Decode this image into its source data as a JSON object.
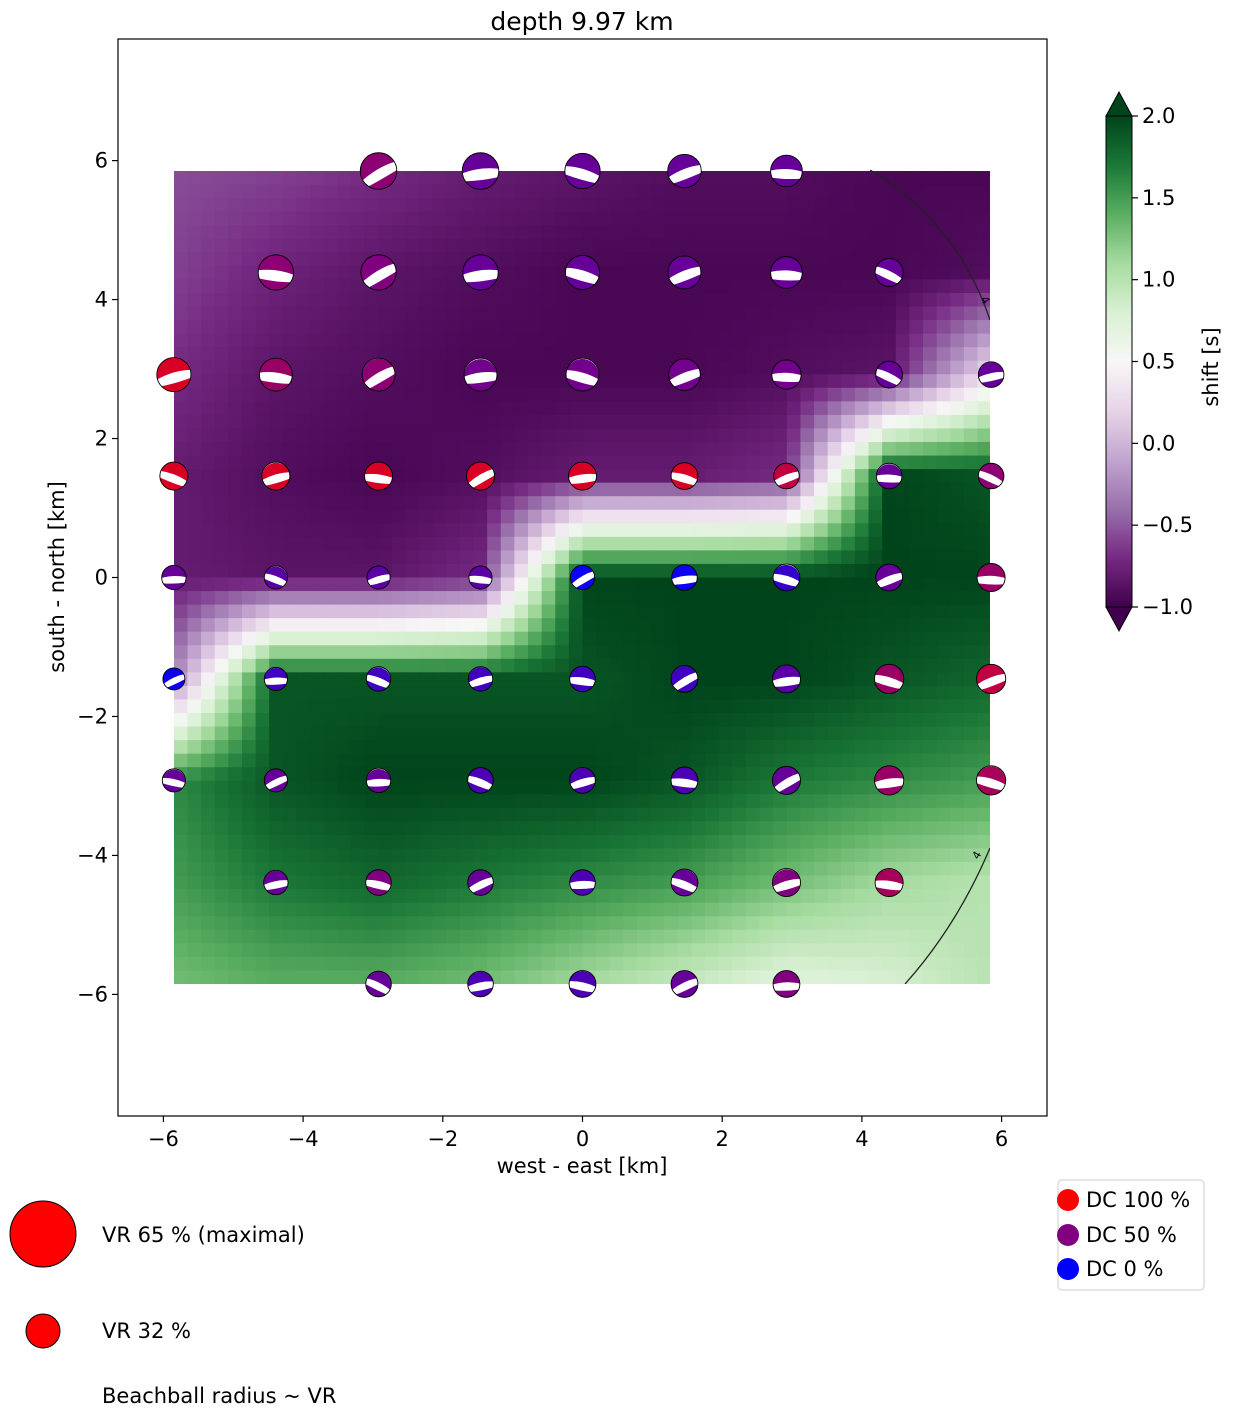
{
  "chart_data": {
    "type": "heatmap",
    "title": "depth  9.97 km",
    "xlabel": "west - east [km]",
    "ylabel": "south - north [km]",
    "xlim": [
      -6.65,
      6.65
    ],
    "ylim": [
      -7.75,
      7.75
    ],
    "xticks": [
      -6,
      -4,
      -2,
      0,
      2,
      4,
      6
    ],
    "yticks": [
      -6,
      -4,
      -2,
      0,
      2,
      4,
      6
    ],
    "x_tick_labels": [
      "−6",
      "−4",
      "−2",
      "0",
      "2",
      "4",
      "6"
    ],
    "y_tick_labels": [
      "−6",
      "−4",
      "−2",
      "0",
      "2",
      "4",
      "6"
    ],
    "grid": false,
    "heatmap_extent": {
      "x": [
        -5.85,
        5.85
      ],
      "y": [
        -5.85,
        5.85
      ]
    },
    "colorbar": {
      "label": "shift [s]",
      "range": [
        -1.0,
        2.0
      ],
      "ticks": [
        -1.0,
        -0.5,
        0.0,
        0.5,
        1.0,
        1.5,
        2.0
      ],
      "tick_labels": [
        "−1.0",
        "−0.5",
        "0.0",
        "0.5",
        "1.0",
        "1.5",
        "2.0"
      ],
      "colors": [
        "#40004b",
        "#762a83",
        "#9970ab",
        "#c2a5cf",
        "#e7d4e8",
        "#f7f7f7",
        "#d9f0d3",
        "#a6dba0",
        "#5aae61",
        "#1b7837",
        "#00441b"
      ]
    },
    "contour_labels": [
      "4",
      "4"
    ],
    "shift_surface": {
      "x": [
        -5.85,
        -4.39,
        -2.92,
        -1.46,
        0.0,
        1.46,
        2.92,
        4.39,
        5.85
      ],
      "y": [
        5.85,
        4.39,
        2.92,
        1.46,
        0.0,
        -1.46,
        -2.92,
        -4.39,
        -5.85
      ],
      "values": [
        [
          -0.55,
          -0.6,
          -0.7,
          -0.8,
          -0.85,
          -0.9,
          -0.9,
          -0.95,
          -0.95
        ],
        [
          -0.6,
          -0.75,
          -0.85,
          -0.9,
          -0.95,
          -0.95,
          -0.95,
          -0.95,
          -0.9
        ],
        [
          -0.7,
          -0.85,
          -0.9,
          -0.95,
          -0.95,
          -0.95,
          -0.9,
          -0.85,
          0.3
        ],
        [
          -0.8,
          -0.9,
          -0.95,
          -0.9,
          -0.8,
          -0.8,
          -0.7,
          2.0,
          1.9
        ],
        [
          -0.8,
          -0.85,
          -0.85,
          -0.7,
          2.0,
          2.0,
          2.0,
          2.0,
          2.0
        ],
        [
          -0.3,
          1.9,
          1.9,
          1.9,
          1.9,
          2.0,
          2.0,
          1.9,
          1.8
        ],
        [
          1.6,
          1.9,
          2.0,
          2.0,
          2.0,
          1.9,
          1.7,
          1.6,
          1.5
        ],
        [
          1.5,
          1.7,
          1.8,
          1.7,
          1.6,
          1.5,
          1.3,
          1.1,
          1.0
        ],
        [
          1.3,
          1.4,
          1.4,
          1.3,
          1.1,
          0.9,
          0.7,
          0.8,
          1.0
        ]
      ]
    },
    "beachballs": {
      "rows": [
        {
          "y": 5.85,
          "x": [
            -2.92,
            -1.46,
            0.0,
            1.46,
            2.92
          ],
          "vr": [
            60,
            60,
            58,
            55,
            52
          ],
          "dc": [
            55,
            40,
            40,
            40,
            40
          ]
        },
        {
          "y": 4.39,
          "x": [
            -4.39,
            -2.92,
            -1.46,
            0.0,
            1.46,
            2.92,
            4.39
          ],
          "vr": [
            58,
            58,
            58,
            56,
            54,
            52,
            46
          ],
          "dc": [
            55,
            50,
            40,
            40,
            40,
            40,
            40
          ]
        },
        {
          "y": 2.92,
          "x": [
            -5.85,
            -4.39,
            -2.92,
            -1.46,
            0.0,
            1.46,
            2.92,
            4.39,
            5.85
          ],
          "vr": [
            56,
            54,
            54,
            54,
            54,
            52,
            48,
            44,
            42
          ],
          "dc": [
            85,
            60,
            55,
            45,
            45,
            45,
            45,
            40,
            40
          ]
        },
        {
          "y": 1.46,
          "x": [
            -5.85,
            -4.39,
            -2.92,
            -1.46,
            0.0,
            1.46,
            2.92,
            4.39,
            5.85
          ],
          "vr": [
            46,
            46,
            46,
            46,
            46,
            44,
            42,
            42,
            42
          ],
          "dc": [
            85,
            85,
            85,
            85,
            85,
            85,
            75,
            40,
            55
          ]
        },
        {
          "y": 0.0,
          "x": [
            -5.85,
            -4.39,
            -2.92,
            -1.46,
            0.0,
            1.46,
            2.92,
            4.39,
            5.85
          ],
          "vr": [
            40,
            38,
            38,
            38,
            40,
            42,
            44,
            44,
            46
          ],
          "dc": [
            40,
            35,
            35,
            35,
            5,
            5,
            20,
            40,
            60
          ]
        },
        {
          "y": -1.46,
          "x": [
            -5.85,
            -4.39,
            -2.92,
            -1.46,
            0.0,
            1.46,
            2.92,
            4.39,
            5.85
          ],
          "vr": [
            36,
            38,
            40,
            40,
            42,
            44,
            46,
            48,
            48
          ],
          "dc": [
            5,
            25,
            25,
            25,
            25,
            25,
            35,
            60,
            75
          ]
        },
        {
          "y": -2.92,
          "x": [
            -5.85,
            -4.39,
            -2.92,
            -1.46,
            0.0,
            1.46,
            2.92,
            4.39,
            5.85
          ],
          "vr": [
            38,
            38,
            40,
            42,
            42,
            44,
            46,
            48,
            48
          ],
          "dc": [
            40,
            40,
            40,
            30,
            30,
            30,
            40,
            60,
            65
          ]
        },
        {
          "y": -4.39,
          "x": [
            -4.39,
            -2.92,
            -1.46,
            0.0,
            1.46,
            2.92,
            4.39
          ],
          "vr": [
            40,
            42,
            42,
            42,
            44,
            46,
            46
          ],
          "dc": [
            40,
            50,
            40,
            30,
            40,
            50,
            65
          ]
        },
        {
          "y": -5.85,
          "x": [
            -2.92,
            -1.46,
            0.0,
            1.46,
            2.92
          ],
          "vr": [
            42,
            42,
            44,
            44,
            44
          ],
          "dc": [
            40,
            30,
            30,
            40,
            50
          ]
        }
      ]
    },
    "legends": {
      "vr_max": "VR 65 % (maximal)",
      "vr_mid": "VR 32 %",
      "radius_note": "Beachball radius ~ VR",
      "dc_items": [
        {
          "label": "DC 100 %",
          "color": "#ff0000"
        },
        {
          "label": "DC 50 %",
          "color": "#800080"
        },
        {
          "label": "DC 0 %",
          "color": "#0000ff"
        }
      ],
      "vr_color": "#ff0000"
    }
  }
}
